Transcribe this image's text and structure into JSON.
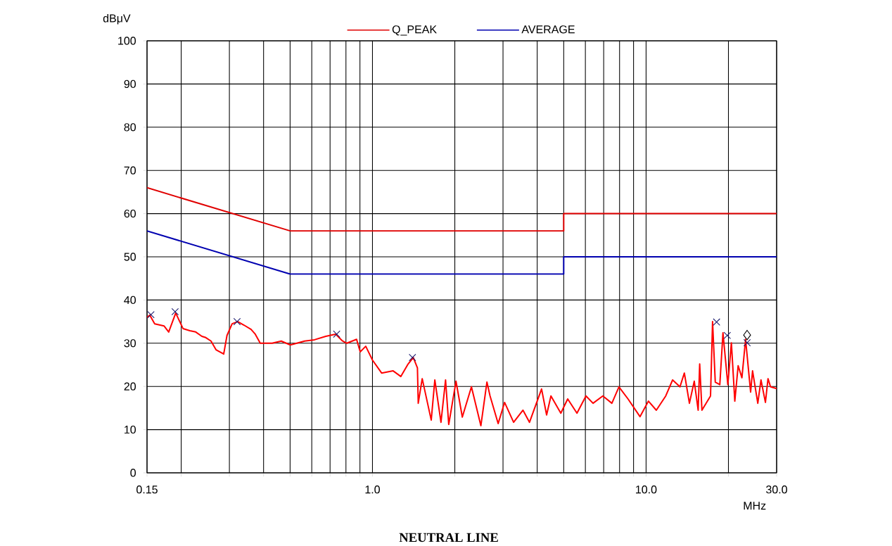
{
  "chart_data": {
    "type": "line",
    "xlabel": "MHz",
    "ylabel": "dBμV",
    "log": "x",
    "grid": true,
    "legend": "top",
    "xlim": [
      0.15,
      30
    ],
    "ylim": [
      0,
      100
    ],
    "xticks": [
      0.15,
      {
        "value": 0.2,
        "label": null
      },
      {
        "value": 0.3,
        "label": null
      },
      {
        "value": 0.4,
        "label": null
      },
      {
        "value": 0.5,
        "label": null
      },
      {
        "value": 0.6,
        "label": null
      },
      {
        "value": 0.7,
        "label": null
      },
      {
        "value": 0.8,
        "label": null
      },
      {
        "value": 0.9,
        "label": null
      },
      {
        "value": 1,
        "label": "1.0"
      },
      {
        "value": 2,
        "label": null
      },
      {
        "value": 3,
        "label": null
      },
      {
        "value": 4,
        "label": null
      },
      {
        "value": 5,
        "label": null
      },
      {
        "value": 6,
        "label": null
      },
      {
        "value": 7,
        "label": null
      },
      {
        "value": 8,
        "label": null
      },
      {
        "value": 9,
        "label": null
      },
      {
        "value": 10,
        "label": "10.0"
      },
      {
        "value": 20,
        "label": null
      },
      {
        "value": 30,
        "label": "30.0"
      }
    ],
    "yticks": [
      0,
      10,
      20,
      30,
      40,
      50,
      60,
      70,
      80,
      90,
      100
    ],
    "annotations": [
      "NEUTRAL LINE"
    ],
    "series": [
      {
        "name": "Q_PEAK",
        "color": "#e00000",
        "x": [
          0.15,
          0.5,
          5,
          5,
          30
        ],
        "values": [
          66,
          56,
          56,
          60,
          60
        ]
      },
      {
        "name": "AVERAGE",
        "color": "#0000b0",
        "x": [
          0.15,
          0.5,
          5,
          5,
          30
        ],
        "values": [
          56,
          46,
          46,
          50,
          50
        ]
      },
      {
        "color": "#ff0000",
        "x": [
          0.15,
          0.1536,
          0.16,
          0.173,
          0.18,
          0.191,
          0.203,
          0.215,
          0.226,
          0.238,
          0.246,
          0.257,
          0.268,
          0.286,
          0.294,
          0.307,
          0.322,
          0.339,
          0.36,
          0.373,
          0.389,
          0.43,
          0.464,
          0.501,
          0.565,
          0.614,
          0.675,
          0.733,
          0.778,
          0.806,
          0.875,
          0.902,
          0.945,
          1.0,
          1.08,
          1.19,
          1.27,
          1.35,
          1.41,
          1.46,
          1.47,
          1.52,
          1.64,
          1.69,
          1.78,
          1.85,
          1.9,
          2.02,
          2.13,
          2.3,
          2.49,
          2.62,
          2.69,
          2.88,
          3.04,
          3.28,
          3.55,
          3.75,
          4.15,
          4.33,
          4.49,
          4.88,
          5.17,
          5.59,
          6.03,
          6.4,
          6.95,
          7.5,
          7.96,
          8.59,
          9.5,
          10.2,
          10.9,
          11.8,
          12.5,
          13.3,
          13.8,
          14.4,
          15.0,
          15.5,
          15.7,
          16.0,
          17.2,
          17.5,
          17.9,
          18.6,
          19.1,
          19.9,
          20.5,
          21.1,
          21.7,
          22.4,
          23.1,
          24.1,
          24.5,
          25.6,
          26.3,
          27.3,
          27.9,
          28.5,
          30.0
        ],
        "values": [
          36,
          36.5,
          34.5,
          34.0,
          32.6,
          37.0,
          33.4,
          32.9,
          32.6,
          31.6,
          31.3,
          30.5,
          28.5,
          27.5,
          31.8,
          34.5,
          35.0,
          34.2,
          33.2,
          32.1,
          30.0,
          30.0,
          30.5,
          29.6,
          30.5,
          30.8,
          31.6,
          32.1,
          30.5,
          30.0,
          30.9,
          28.0,
          29.3,
          26.1,
          23.1,
          23.6,
          22.3,
          25.2,
          26.7,
          24.3,
          16.1,
          21.8,
          12.2,
          21.5,
          11.7,
          21.5,
          11.2,
          21.2,
          12.9,
          19.9,
          10.9,
          21.0,
          17.8,
          11.4,
          16.3,
          11.7,
          14.5,
          11.7,
          19.4,
          13.4,
          17.8,
          13.8,
          17.1,
          13.8,
          17.8,
          16.1,
          17.8,
          16.1,
          19.9,
          17.1,
          13.0,
          16.6,
          14.5,
          17.8,
          21.5,
          19.9,
          23.1,
          16.1,
          21.2,
          14.5,
          25.2,
          14.5,
          17.8,
          35.0,
          21.0,
          20.4,
          32.4,
          20.4,
          30.1,
          16.6,
          24.8,
          22.0,
          30.9,
          18.7,
          23.6,
          16.1,
          21.5,
          16.3,
          21.8,
          19.9,
          19.5
        ]
      },
      {
        "type": "scatter",
        "marker": "cross",
        "color": "#1a1a6e",
        "x": [
          0.155,
          0.19,
          0.32,
          0.74,
          1.4,
          18.1,
          19.8,
          23.4
        ],
        "values": [
          36.6,
          37.3,
          35.0,
          32.1,
          26.7,
          34.9,
          31.8,
          30.1
        ]
      },
      {
        "type": "scatter",
        "marker": "diamond",
        "color": "#000000",
        "x": [
          23.4
        ],
        "values": [
          31.9
        ]
      }
    ]
  }
}
